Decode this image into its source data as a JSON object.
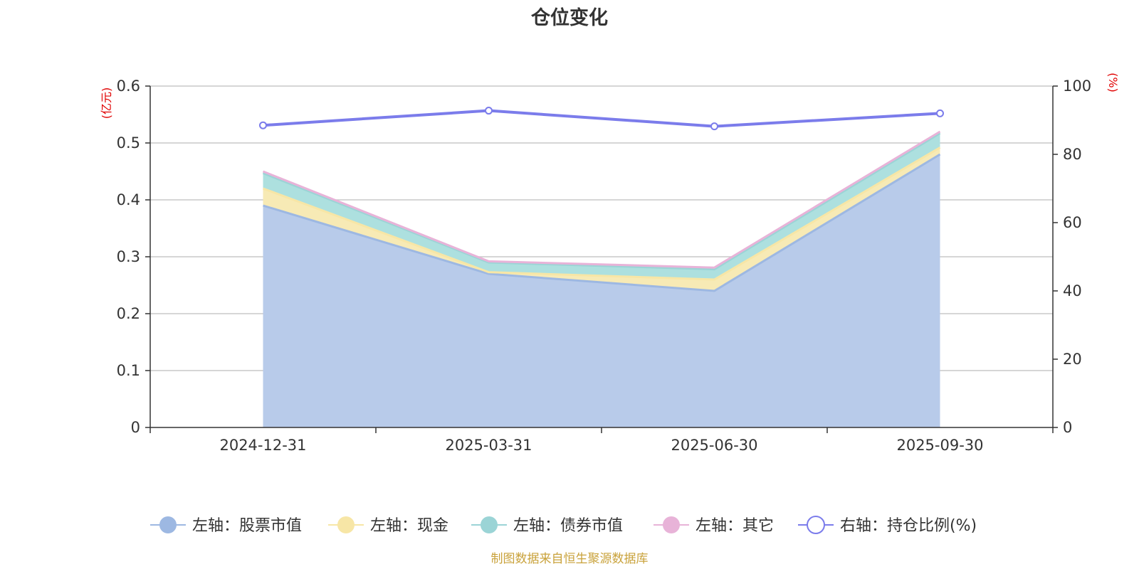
{
  "chart_data": {
    "type": "area",
    "title": "仓位变化",
    "left_axis_unit": "(亿元)",
    "right_axis_unit": "(%)",
    "categories": [
      "2024-12-31",
      "2025-03-31",
      "2025-06-30",
      "2025-09-30"
    ],
    "left_axis": {
      "min": 0,
      "max": 0.6,
      "ticks": [
        "0",
        "0.1",
        "0.2",
        "0.3",
        "0.4",
        "0.5",
        "0.6"
      ]
    },
    "right_axis": {
      "min": 0,
      "max": 100,
      "ticks": [
        "0",
        "20",
        "40",
        "60",
        "80",
        "100"
      ]
    },
    "grid": true,
    "stacked": true,
    "series": [
      {
        "name": "左轴：股票市值",
        "axis": "left",
        "type": "area",
        "values": [
          0.39,
          0.27,
          0.24,
          0.48
        ],
        "color": "#9db8e2",
        "fill": "#b8cbea"
      },
      {
        "name": "左轴：现金",
        "axis": "left",
        "type": "area",
        "values": [
          0.03,
          0.003,
          0.02,
          0.012
        ],
        "color": "#f7e6a6",
        "fill": "#f7eab5"
      },
      {
        "name": "左轴：债券市值",
        "axis": "left",
        "type": "area",
        "values": [
          0.027,
          0.017,
          0.018,
          0.025
        ],
        "color": "#9bd4d6",
        "fill": "#ade0df"
      },
      {
        "name": "左轴：其它",
        "axis": "left",
        "type": "area",
        "values": [
          0.003,
          0.002,
          0.003,
          0.003
        ],
        "color": "#e8b3d8",
        "fill": "#eec6e2"
      },
      {
        "name": "右轴：持仓比例(%)",
        "axis": "right",
        "type": "line",
        "values": [
          88.5,
          92.8,
          88.2,
          92.0
        ],
        "color": "#7b7ceb"
      }
    ],
    "legend_position": "bottom",
    "source_note": "制图数据来自恒生聚源数据库"
  }
}
